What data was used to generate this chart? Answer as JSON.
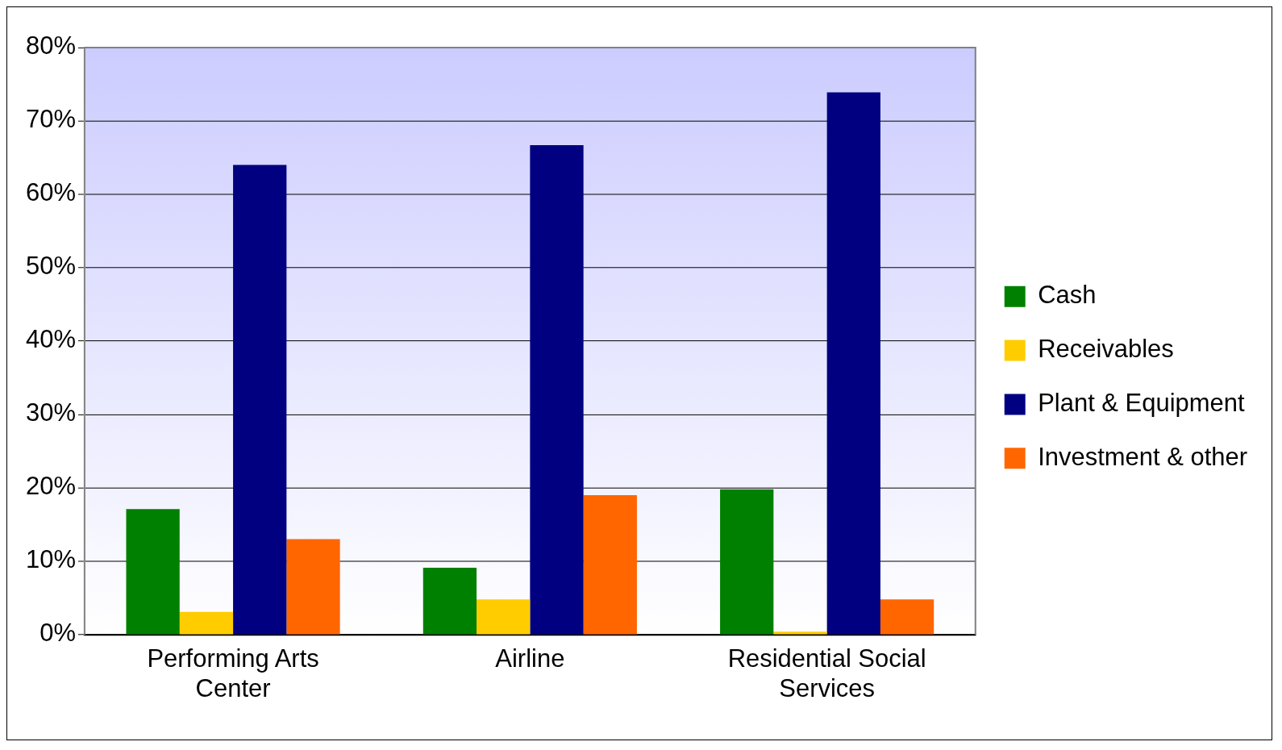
{
  "chart_data": {
    "type": "bar",
    "categories": [
      "Performing Arts Center",
      "Airline",
      "Residential Social Services"
    ],
    "series": [
      {
        "name": "Cash",
        "color": "#008000",
        "values": [
          17.1,
          9.1,
          19.8
        ]
      },
      {
        "name": "Receivables",
        "color": "#ffcc00",
        "values": [
          3.1,
          4.8,
          0.4
        ]
      },
      {
        "name": "Plant & Equipment",
        "color": "#000080",
        "values": [
          64.0,
          66.7,
          73.9
        ]
      },
      {
        "name": "Investment & other",
        "color": "#ff6600",
        "values": [
          13.0,
          19.0,
          4.8
        ]
      }
    ],
    "ylim": [
      0,
      80
    ],
    "yticks": [
      {
        "value": 0,
        "label": "0%"
      },
      {
        "value": 10,
        "label": "10%"
      },
      {
        "value": 20,
        "label": "20%"
      },
      {
        "value": 30,
        "label": "30%"
      },
      {
        "value": 40,
        "label": "40%"
      },
      {
        "value": 50,
        "label": "50%"
      },
      {
        "value": 60,
        "label": "60%"
      },
      {
        "value": 70,
        "label": "70%"
      },
      {
        "value": 80,
        "label": "80%"
      }
    ],
    "grid": "y",
    "legend": "right"
  }
}
